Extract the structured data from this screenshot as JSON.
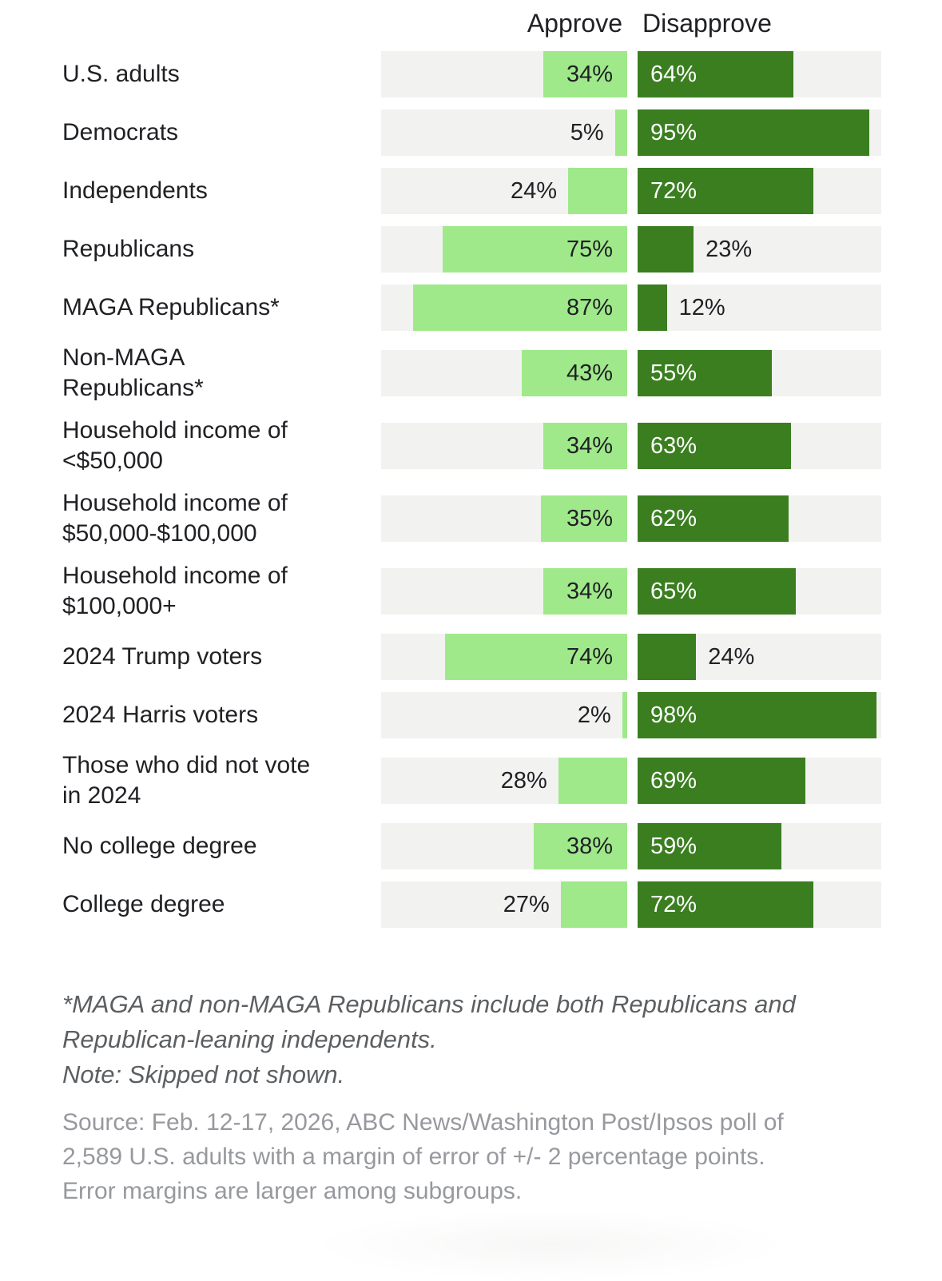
{
  "chart_data": {
    "type": "bar",
    "variant": "diverging-horizontal-pair",
    "title": "",
    "unit": "%",
    "xlim": [
      0,
      100
    ],
    "grid": false,
    "legend_position": "column-headers",
    "columns": {
      "approve_header": "Approve",
      "disapprove_header": "Disapprove"
    },
    "series_names": [
      "Approve",
      "Disapprove"
    ],
    "rows": [
      {
        "group": "U.S. adults",
        "approve": 34,
        "disapprove": 64
      },
      {
        "group": "Democrats",
        "approve": 5,
        "disapprove": 95
      },
      {
        "group": "Independents",
        "approve": 24,
        "disapprove": 72
      },
      {
        "group": "Republicans",
        "approve": 75,
        "disapprove": 23
      },
      {
        "group": "MAGA Republicans*",
        "approve": 87,
        "disapprove": 12
      },
      {
        "group": "Non-MAGA\nRepublicans*",
        "approve": 43,
        "disapprove": 55
      },
      {
        "group": "Household income of\n<$50,000",
        "approve": 34,
        "disapprove": 63
      },
      {
        "group": "Household income of\n$50,000-$100,000",
        "approve": 35,
        "disapprove": 62
      },
      {
        "group": "Household income of\n$100,000+",
        "approve": 34,
        "disapprove": 65
      },
      {
        "group": "2024 Trump voters",
        "approve": 74,
        "disapprove": 24
      },
      {
        "group": "2024 Harris voters",
        "approve": 2,
        "disapprove": 98
      },
      {
        "group": "Those who did not vote\nin 2024",
        "approve": 28,
        "disapprove": 69
      },
      {
        "group": "No college degree",
        "approve": 38,
        "disapprove": 59
      },
      {
        "group": "College degree",
        "approve": 27,
        "disapprove": 72
      }
    ],
    "colors": {
      "approve": "#9FE98B",
      "disapprove": "#3A7E20",
      "track": "#F2F2F1",
      "text_dark": "#202124",
      "label_on_dark": "#FFFFFF",
      "footnote": "#5C5F62",
      "source": "#97999E"
    }
  },
  "footnotes": {
    "asterisk": "*MAGA and non-MAGA Republicans include both Republicans and\nRepublican-leaning independents.",
    "note": "Note: Skipped not shown.",
    "source": "Source: Feb. 12-17, 2026, ABC News/Washington Post/Ipsos poll of\n2,589 U.S. adults with a margin of error of +/- 2 percentage points.\nError margins are larger among subgroups."
  }
}
